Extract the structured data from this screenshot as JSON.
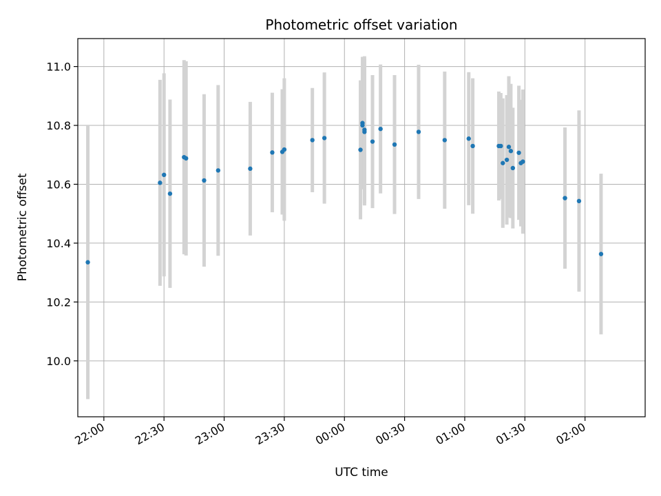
{
  "chart_data": {
    "type": "scatter",
    "title": "Photometric offset variation",
    "xlabel": "UTC time",
    "ylabel": "Photometric offset",
    "x_ticks": [
      "22:00",
      "22:30",
      "23:00",
      "23:30",
      "00:00",
      "00:30",
      "01:00",
      "01:30",
      "02:00"
    ],
    "y_ticks": [
      "10.0",
      "10.2",
      "10.4",
      "10.6",
      "10.8",
      "11.0"
    ],
    "xlim": [
      "21:47",
      "02:30"
    ],
    "ylim": [
      9.81,
      11.095
    ],
    "grid": true,
    "colors": {
      "point": "#1f77b4",
      "errorbar": "#d3d3d3",
      "grid": "#b0b0b0"
    },
    "points": [
      {
        "x": "21:52",
        "y": 10.335,
        "err": 0.465
      },
      {
        "x": "22:28",
        "y": 10.605,
        "err": 0.35
      },
      {
        "x": "22:30",
        "y": 10.632,
        "err": 0.345
      },
      {
        "x": "22:33",
        "y": 10.568,
        "err": 0.32
      },
      {
        "x": "22:40",
        "y": 10.692,
        "err": 0.33
      },
      {
        "x": "22:41",
        "y": 10.688,
        "err": 0.33
      },
      {
        "x": "22:50",
        "y": 10.613,
        "err": 0.293
      },
      {
        "x": "22:57",
        "y": 10.647,
        "err": 0.29
      },
      {
        "x": "23:13",
        "y": 10.653,
        "err": 0.227
      },
      {
        "x": "23:24",
        "y": 10.708,
        "err": 0.203
      },
      {
        "x": "23:29",
        "y": 10.71,
        "err": 0.213
      },
      {
        "x": "23:30",
        "y": 10.718,
        "err": 0.242
      },
      {
        "x": "23:44",
        "y": 10.75,
        "err": 0.177
      },
      {
        "x": "23:50",
        "y": 10.757,
        "err": 0.223
      },
      {
        "x": "00:08",
        "y": 10.717,
        "err": 0.236
      },
      {
        "x": "00:09",
        "y": 10.808,
        "err": 0.225
      },
      {
        "x": "00:09",
        "y": 10.8,
        "err": 0.2
      },
      {
        "x": "00:10",
        "y": 10.785,
        "err": 0.25
      },
      {
        "x": "00:10",
        "y": 10.778,
        "err": 0.25
      },
      {
        "x": "00:14",
        "y": 10.745,
        "err": 0.226
      },
      {
        "x": "00:18",
        "y": 10.788,
        "err": 0.219
      },
      {
        "x": "00:25",
        "y": 10.735,
        "err": 0.236
      },
      {
        "x": "00:37",
        "y": 10.778,
        "err": 0.228
      },
      {
        "x": "00:50",
        "y": 10.75,
        "err": 0.233
      },
      {
        "x": "01:02",
        "y": 10.755,
        "err": 0.226
      },
      {
        "x": "01:04",
        "y": 10.73,
        "err": 0.23
      },
      {
        "x": "01:17",
        "y": 10.73,
        "err": 0.185
      },
      {
        "x": "01:18",
        "y": 10.73,
        "err": 0.18
      },
      {
        "x": "01:19",
        "y": 10.672,
        "err": 0.22
      },
      {
        "x": "01:21",
        "y": 10.683,
        "err": 0.22
      },
      {
        "x": "01:22",
        "y": 10.727,
        "err": 0.24
      },
      {
        "x": "01:23",
        "y": 10.713,
        "err": 0.228
      },
      {
        "x": "01:24",
        "y": 10.655,
        "err": 0.205
      },
      {
        "x": "01:27",
        "y": 10.707,
        "err": 0.228
      },
      {
        "x": "01:28",
        "y": 10.672,
        "err": 0.215
      },
      {
        "x": "01:29",
        "y": 10.677,
        "err": 0.245
      },
      {
        "x": "01:50",
        "y": 10.553,
        "err": 0.24
      },
      {
        "x": "01:57",
        "y": 10.543,
        "err": 0.308
      },
      {
        "x": "02:08",
        "y": 10.363,
        "err": 0.273
      }
    ]
  }
}
